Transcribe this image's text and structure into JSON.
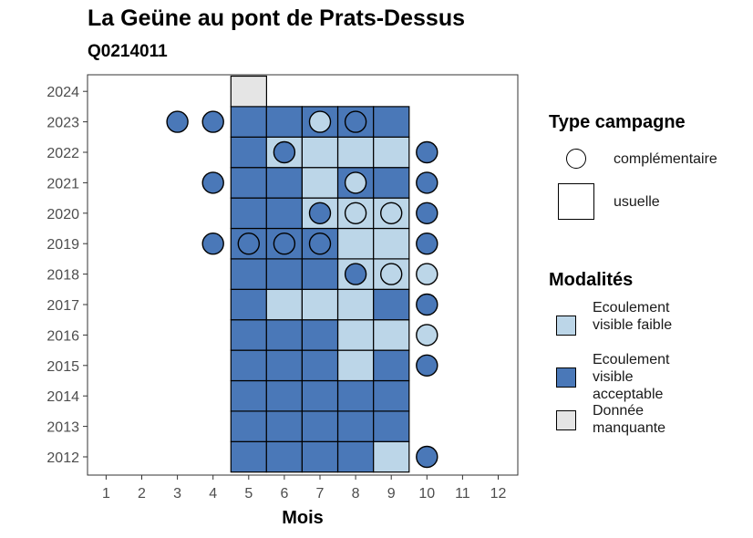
{
  "chart_data": {
    "type": "heatmap",
    "title": "La Geüne au pont de Prats-Dessus",
    "subtitle": "Q0214011",
    "xlabel": "Mois",
    "ylabel": "",
    "x_ticks": [
      "1",
      "2",
      "3",
      "4",
      "5",
      "6",
      "7",
      "8",
      "9",
      "10",
      "11",
      "12"
    ],
    "y_ticks": [
      "2012",
      "2013",
      "2014",
      "2015",
      "2016",
      "2017",
      "2018",
      "2019",
      "2020",
      "2021",
      "2022",
      "2023",
      "2024"
    ],
    "colors": {
      "faible": "#bcd6e8",
      "acceptable": "#4a78b8",
      "manquante": "#e5e5e5",
      "frame": "#333333"
    },
    "usuelle": [
      {
        "year": 2012,
        "month": 5,
        "value": "acceptable"
      },
      {
        "year": 2012,
        "month": 6,
        "value": "acceptable"
      },
      {
        "year": 2012,
        "month": 7,
        "value": "acceptable"
      },
      {
        "year": 2012,
        "month": 8,
        "value": "acceptable"
      },
      {
        "year": 2012,
        "month": 9,
        "value": "faible"
      },
      {
        "year": 2013,
        "month": 5,
        "value": "acceptable"
      },
      {
        "year": 2013,
        "month": 6,
        "value": "acceptable"
      },
      {
        "year": 2013,
        "month": 7,
        "value": "acceptable"
      },
      {
        "year": 2013,
        "month": 8,
        "value": "acceptable"
      },
      {
        "year": 2013,
        "month": 9,
        "value": "acceptable"
      },
      {
        "year": 2014,
        "month": 5,
        "value": "acceptable"
      },
      {
        "year": 2014,
        "month": 6,
        "value": "acceptable"
      },
      {
        "year": 2014,
        "month": 7,
        "value": "acceptable"
      },
      {
        "year": 2014,
        "month": 8,
        "value": "acceptable"
      },
      {
        "year": 2014,
        "month": 9,
        "value": "acceptable"
      },
      {
        "year": 2015,
        "month": 5,
        "value": "acceptable"
      },
      {
        "year": 2015,
        "month": 6,
        "value": "acceptable"
      },
      {
        "year": 2015,
        "month": 7,
        "value": "acceptable"
      },
      {
        "year": 2015,
        "month": 8,
        "value": "faible"
      },
      {
        "year": 2015,
        "month": 9,
        "value": "acceptable"
      },
      {
        "year": 2016,
        "month": 5,
        "value": "acceptable"
      },
      {
        "year": 2016,
        "month": 6,
        "value": "acceptable"
      },
      {
        "year": 2016,
        "month": 7,
        "value": "acceptable"
      },
      {
        "year": 2016,
        "month": 8,
        "value": "faible"
      },
      {
        "year": 2016,
        "month": 9,
        "value": "faible"
      },
      {
        "year": 2017,
        "month": 5,
        "value": "acceptable"
      },
      {
        "year": 2017,
        "month": 6,
        "value": "faible"
      },
      {
        "year": 2017,
        "month": 7,
        "value": "faible"
      },
      {
        "year": 2017,
        "month": 8,
        "value": "faible"
      },
      {
        "year": 2017,
        "month": 9,
        "value": "acceptable"
      },
      {
        "year": 2018,
        "month": 5,
        "value": "acceptable"
      },
      {
        "year": 2018,
        "month": 6,
        "value": "acceptable"
      },
      {
        "year": 2018,
        "month": 7,
        "value": "acceptable"
      },
      {
        "year": 2018,
        "month": 8,
        "value": "faible"
      },
      {
        "year": 2018,
        "month": 9,
        "value": "faible"
      },
      {
        "year": 2019,
        "month": 5,
        "value": "acceptable"
      },
      {
        "year": 2019,
        "month": 6,
        "value": "acceptable"
      },
      {
        "year": 2019,
        "month": 7,
        "value": "acceptable"
      },
      {
        "year": 2019,
        "month": 8,
        "value": "faible"
      },
      {
        "year": 2019,
        "month": 9,
        "value": "faible"
      },
      {
        "year": 2020,
        "month": 5,
        "value": "acceptable"
      },
      {
        "year": 2020,
        "month": 6,
        "value": "acceptable"
      },
      {
        "year": 2020,
        "month": 7,
        "value": "faible"
      },
      {
        "year": 2020,
        "month": 8,
        "value": "faible"
      },
      {
        "year": 2020,
        "month": 9,
        "value": "faible"
      },
      {
        "year": 2021,
        "month": 5,
        "value": "acceptable"
      },
      {
        "year": 2021,
        "month": 6,
        "value": "acceptable"
      },
      {
        "year": 2021,
        "month": 7,
        "value": "faible"
      },
      {
        "year": 2021,
        "month": 8,
        "value": "acceptable"
      },
      {
        "year": 2021,
        "month": 9,
        "value": "acceptable"
      },
      {
        "year": 2022,
        "month": 5,
        "value": "acceptable"
      },
      {
        "year": 2022,
        "month": 6,
        "value": "faible"
      },
      {
        "year": 2022,
        "month": 7,
        "value": "faible"
      },
      {
        "year": 2022,
        "month": 8,
        "value": "faible"
      },
      {
        "year": 2022,
        "month": 9,
        "value": "faible"
      },
      {
        "year": 2023,
        "month": 5,
        "value": "acceptable"
      },
      {
        "year": 2023,
        "month": 6,
        "value": "acceptable"
      },
      {
        "year": 2023,
        "month": 7,
        "value": "acceptable"
      },
      {
        "year": 2023,
        "month": 8,
        "value": "acceptable"
      },
      {
        "year": 2023,
        "month": 9,
        "value": "acceptable"
      },
      {
        "year": 2024,
        "month": 5,
        "value": "manquante"
      }
    ],
    "complementaire": [
      {
        "year": 2012,
        "month": 10,
        "value": "acceptable"
      },
      {
        "year": 2015,
        "month": 10,
        "value": "acceptable"
      },
      {
        "year": 2016,
        "month": 10,
        "value": "faible"
      },
      {
        "year": 2017,
        "month": 10,
        "value": "acceptable"
      },
      {
        "year": 2018,
        "month": 8,
        "value": "acceptable"
      },
      {
        "year": 2018,
        "month": 9,
        "value": "faible"
      },
      {
        "year": 2018,
        "month": 10,
        "value": "faible"
      },
      {
        "year": 2019,
        "month": 4,
        "value": "acceptable"
      },
      {
        "year": 2019,
        "month": 5,
        "value": "acceptable"
      },
      {
        "year": 2019,
        "month": 6,
        "value": "acceptable"
      },
      {
        "year": 2019,
        "month": 7,
        "value": "acceptable"
      },
      {
        "year": 2019,
        "month": 10,
        "value": "acceptable"
      },
      {
        "year": 2020,
        "month": 7,
        "value": "acceptable"
      },
      {
        "year": 2020,
        "month": 8,
        "value": "faible"
      },
      {
        "year": 2020,
        "month": 9,
        "value": "faible"
      },
      {
        "year": 2020,
        "month": 10,
        "value": "acceptable"
      },
      {
        "year": 2021,
        "month": 4,
        "value": "acceptable"
      },
      {
        "year": 2021,
        "month": 8,
        "value": "faible"
      },
      {
        "year": 2021,
        "month": 10,
        "value": "acceptable"
      },
      {
        "year": 2022,
        "month": 6,
        "value": "acceptable"
      },
      {
        "year": 2022,
        "month": 10,
        "value": "acceptable"
      },
      {
        "year": 2023,
        "month": 3,
        "value": "acceptable"
      },
      {
        "year": 2023,
        "month": 4,
        "value": "acceptable"
      },
      {
        "year": 2023,
        "month": 7,
        "value": "faible"
      },
      {
        "year": 2023,
        "month": 8,
        "value": "acceptable"
      }
    ],
    "legend_type": {
      "title": "Type campagne",
      "complementaire": "complémentaire",
      "usuelle": "usuelle"
    },
    "legend_modalites": {
      "title": "Modalités",
      "faible": "Ecoulement visible faible",
      "acceptable": "Ecoulement visible acceptable",
      "manquante": "Donnée manquante"
    }
  }
}
